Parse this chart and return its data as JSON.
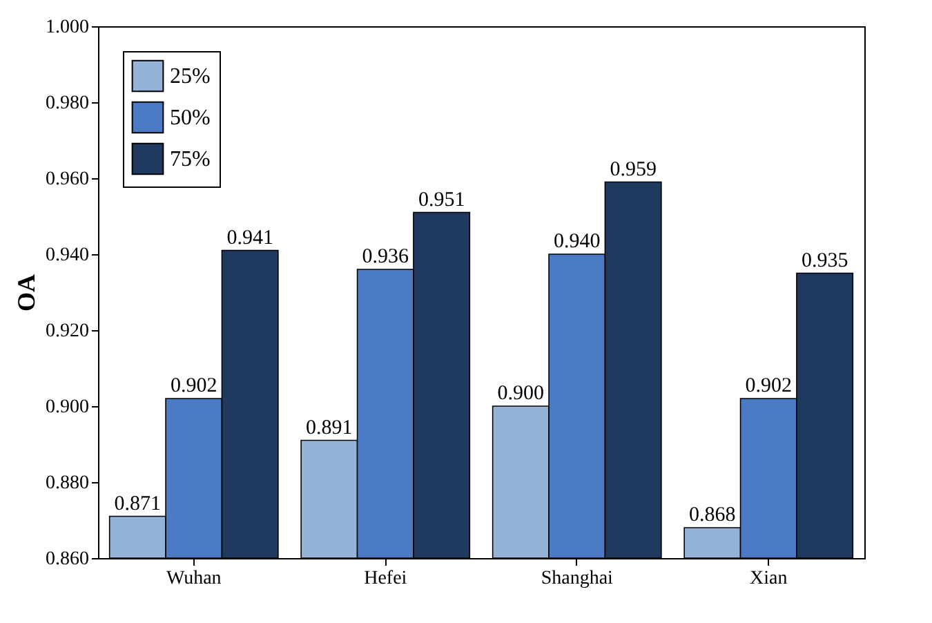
{
  "chart_data": {
    "type": "bar",
    "ylabel": "OA",
    "categories": [
      "Wuhan",
      "Hefei",
      "Shanghai",
      "Xian"
    ],
    "series": [
      {
        "name": "25%",
        "color": "#95b3d7",
        "values": [
          0.871,
          0.891,
          0.9,
          0.868
        ],
        "value_labels": [
          "0.871",
          "0.891",
          "0.900",
          "0.868"
        ]
      },
      {
        "name": "50%",
        "color": "#4a7bc4",
        "values": [
          0.902,
          0.936,
          0.94,
          0.902
        ],
        "value_labels": [
          "0.902",
          "0.936",
          "0.940",
          "0.902"
        ]
      },
      {
        "name": "75%",
        "color": "#1f3a5e",
        "values": [
          0.941,
          0.951,
          0.959,
          0.935
        ],
        "value_labels": [
          "0.941",
          "0.951",
          "0.959",
          "0.935"
        ]
      }
    ],
    "ylim": [
      0.86,
      1.0
    ],
    "yticks": [
      {
        "value": 0.86,
        "label": "0.860"
      },
      {
        "value": 0.88,
        "label": "0.880"
      },
      {
        "value": 0.9,
        "label": "0.900"
      },
      {
        "value": 0.92,
        "label": "0.920"
      },
      {
        "value": 0.94,
        "label": "0.940"
      },
      {
        "value": 0.96,
        "label": "0.960"
      },
      {
        "value": 0.98,
        "label": "0.980"
      },
      {
        "value": 1.0,
        "label": "1.000"
      }
    ],
    "legend": "top left"
  }
}
